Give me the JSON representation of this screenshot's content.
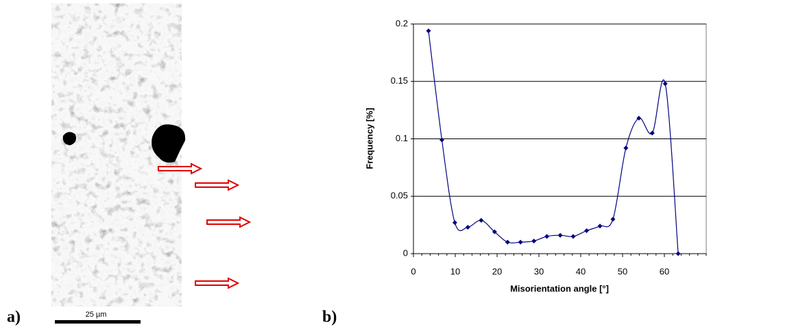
{
  "panel_a": {
    "label": "a)",
    "scale_bar": "25 µm"
  },
  "panel_b": {
    "label": "b)"
  },
  "chart_data": {
    "type": "line",
    "x_label": "Misorientation angle [°]",
    "y_label": "Frequency [%]",
    "x": [
      3.6,
      6.8,
      9.9,
      13.0,
      16.2,
      19.4,
      22.5,
      25.6,
      28.8,
      31.9,
      35.1,
      38.2,
      41.4,
      44.6,
      47.7,
      50.8,
      53.9,
      57.1,
      60.2,
      63.3
    ],
    "series": [
      {
        "color": "#00007f",
        "values": [
          0.194,
          0.099,
          0.027,
          0.023,
          0.029,
          0.019,
          0.01,
          0.01,
          0.011,
          0.015,
          0.016,
          0.015,
          0.02,
          0.024,
          0.03,
          0.092,
          0.118,
          0.105,
          0.148,
          0.0
        ]
      }
    ],
    "xlim": [
      0,
      70
    ],
    "xticks": [
      0,
      10,
      20,
      30,
      40,
      50,
      60
    ],
    "ylim": [
      0,
      0.2
    ],
    "yticks": [
      0,
      0.05,
      0.1,
      0.15,
      0.2
    ],
    "grid": true
  }
}
